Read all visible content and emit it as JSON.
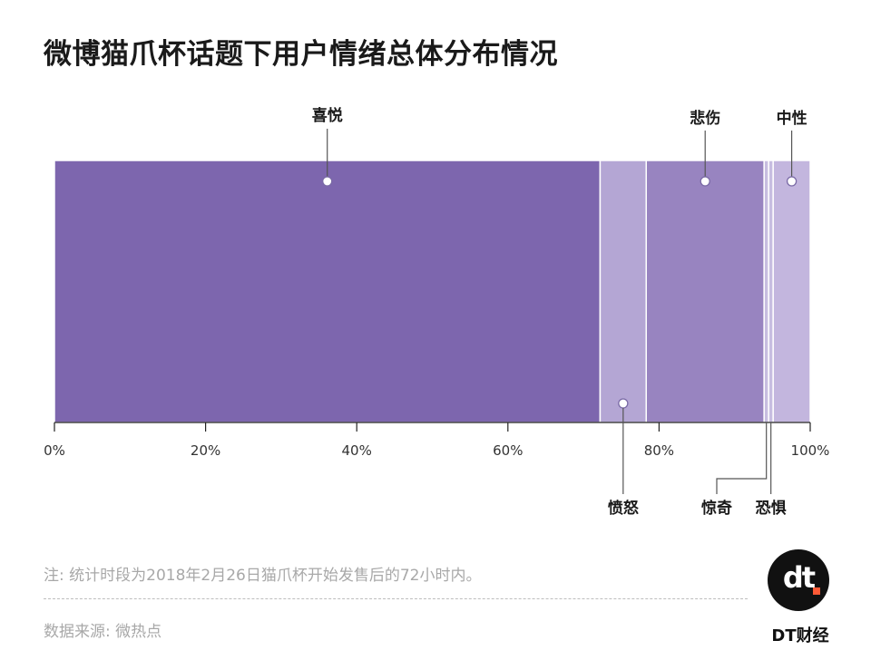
{
  "title": "微博猫爪杯话题下用户情绪总体分布情况",
  "chart_data": {
    "type": "bar",
    "stacked": true,
    "orientation": "horizontal",
    "percent_scale": true,
    "categories": [
      "喜悦",
      "愤怒",
      "悲伤",
      "惊奇",
      "恐惧",
      "中性"
    ],
    "values": [
      72.2,
      6.1,
      15.6,
      0.6,
      0.6,
      4.9
    ],
    "colors": [
      "#7d66ae",
      "#b4a6d4",
      "#9884c0",
      "#c7bde0",
      "#c7bde0",
      "#c3b6de"
    ],
    "x_ticks": [
      "0%",
      "20%",
      "40%",
      "60%",
      "80%",
      "100%"
    ],
    "xlim": [
      0,
      100
    ],
    "grid": false,
    "legend": "callouts"
  },
  "footer": {
    "note": "注: 统计时段为2018年2月26日猫爪杯开始发售后的72小时内。",
    "source": "数据来源: 微热点",
    "logo_text": "dt",
    "brand": "DT财经"
  }
}
